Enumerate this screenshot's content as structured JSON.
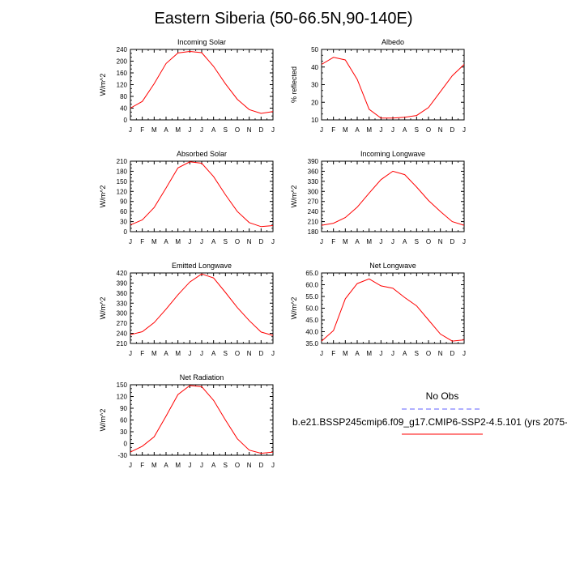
{
  "title": "Eastern Siberia (50-66.5N,90-140E)",
  "legend": {
    "obs_label": "No Obs",
    "obs_color": "#6060ff",
    "model_label": "b.e21.BSSP245cmip6.f09_g17.CMIP6-SSP2-4.5.101 (yrs 2075-",
    "model_color": "#ff0000"
  },
  "chart_data": [
    {
      "type": "line",
      "title": "Incoming Solar",
      "ylabel": "W/m^2",
      "x": [
        "J",
        "F",
        "M",
        "A",
        "M",
        "J",
        "J",
        "A",
        "S",
        "O",
        "N",
        "D",
        "J"
      ],
      "ylim": [
        0,
        240
      ],
      "yticks": [
        0,
        40,
        80,
        120,
        160,
        200,
        240
      ],
      "series": [
        {
          "color": "#ff0000",
          "values": [
            40,
            63,
            123,
            192,
            228,
            233,
            229,
            182,
            123,
            70,
            35,
            22,
            28
          ]
        }
      ]
    },
    {
      "type": "line",
      "title": "Albedo",
      "ylabel": "% reflected",
      "x": [
        "J",
        "F",
        "M",
        "A",
        "M",
        "J",
        "J",
        "A",
        "S",
        "O",
        "N",
        "D",
        "J"
      ],
      "ylim": [
        10,
        50
      ],
      "yticks": [
        10,
        20,
        30,
        40,
        50
      ],
      "series": [
        {
          "color": "#ff0000",
          "values": [
            41.5,
            45.5,
            44,
            33,
            16,
            11,
            11,
            11.5,
            12.5,
            17,
            26,
            35,
            41.5
          ]
        }
      ]
    },
    {
      "type": "line",
      "title": "Absorbed Solar",
      "ylabel": "W/m^2",
      "x": [
        "J",
        "F",
        "M",
        "A",
        "M",
        "J",
        "J",
        "A",
        "S",
        "O",
        "N",
        "D",
        "J"
      ],
      "ylim": [
        0,
        210
      ],
      "yticks": [
        0,
        30,
        60,
        90,
        120,
        150,
        180,
        210
      ],
      "series": [
        {
          "color": "#ff0000",
          "values": [
            20,
            35,
            72,
            130,
            190,
            208,
            204,
            164,
            110,
            60,
            27,
            15,
            18
          ]
        }
      ]
    },
    {
      "type": "line",
      "title": "Incoming Longwave",
      "ylabel": "W/m^2",
      "x": [
        "J",
        "F",
        "M",
        "A",
        "M",
        "J",
        "J",
        "A",
        "S",
        "O",
        "N",
        "D",
        "J"
      ],
      "ylim": [
        180,
        390
      ],
      "yticks": [
        180,
        210,
        240,
        270,
        300,
        330,
        360,
        390
      ],
      "series": [
        {
          "color": "#ff0000",
          "values": [
            199,
            205,
            222,
            253,
            295,
            335,
            360,
            350,
            313,
            273,
            240,
            210,
            199
          ]
        }
      ]
    },
    {
      "type": "line",
      "title": "Emitted Longwave",
      "ylabel": "W/m^2",
      "x": [
        "J",
        "F",
        "M",
        "A",
        "M",
        "J",
        "J",
        "A",
        "S",
        "O",
        "N",
        "D",
        "J"
      ],
      "ylim": [
        210,
        420
      ],
      "yticks": [
        210,
        240,
        270,
        300,
        330,
        360,
        390,
        420
      ],
      "series": [
        {
          "color": "#ff0000",
          "values": [
            236,
            245,
            272,
            312,
            355,
            393,
            417,
            405,
            362,
            317,
            278,
            244,
            234
          ]
        }
      ]
    },
    {
      "type": "line",
      "title": "Net Longwave",
      "ylabel": "W/m^2",
      "x": [
        "J",
        "F",
        "M",
        "A",
        "M",
        "J",
        "J",
        "A",
        "S",
        "O",
        "N",
        "D",
        "J"
      ],
      "ylim": [
        35,
        65
      ],
      "yticks": [
        35.0,
        40.0,
        45.0,
        50.0,
        55.0,
        60.0,
        65.0
      ],
      "series": [
        {
          "color": "#ff0000",
          "values": [
            36,
            40.5,
            54,
            60.5,
            62.5,
            59.5,
            58.5,
            54.5,
            51,
            45,
            39,
            36,
            36.5
          ]
        }
      ]
    },
    {
      "type": "line",
      "title": "Net Radiation",
      "ylabel": "W/m^2",
      "x": [
        "J",
        "F",
        "M",
        "A",
        "M",
        "J",
        "J",
        "A",
        "S",
        "O",
        "N",
        "D",
        "J"
      ],
      "ylim": [
        -30,
        150
      ],
      "yticks": [
        -30,
        0,
        30,
        60,
        90,
        120,
        150
      ],
      "series": [
        {
          "color": "#ff0000",
          "values": [
            -22,
            -7,
            17,
            70,
            125,
            148,
            145,
            110,
            60,
            12,
            -17,
            -25,
            -22
          ]
        }
      ]
    }
  ]
}
